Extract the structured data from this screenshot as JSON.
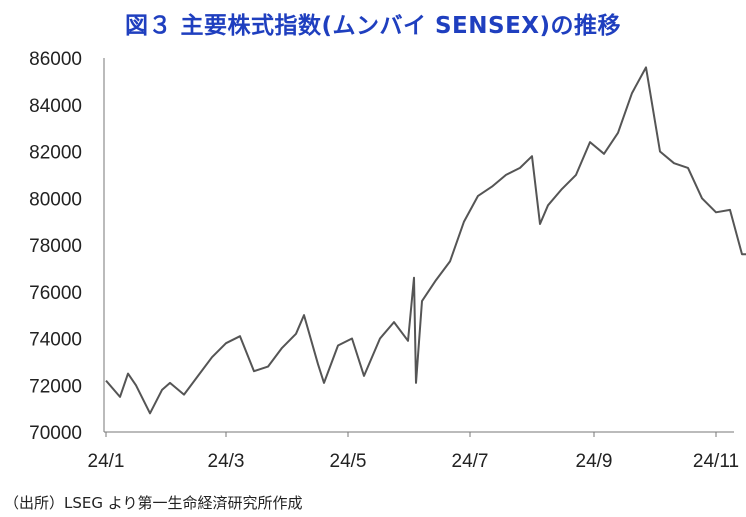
{
  "chart_data": {
    "type": "line",
    "title": "図３ 主要株式指数(ムンバイ SENSEX)の推移",
    "source": "（出所）LSEG より第一生命経済研究所作成",
    "xlabel": "",
    "ylabel": "",
    "ylim": [
      70000,
      86000
    ],
    "yticks": [
      70000,
      72000,
      74000,
      76000,
      78000,
      80000,
      82000,
      84000,
      86000
    ],
    "xticks": [
      "24/1",
      "24/3",
      "24/5",
      "24/7",
      "24/9",
      "24/11"
    ],
    "xlim": [
      "2024-01-01",
      "2024-11-20"
    ],
    "grid": {
      "y": false,
      "x": false
    },
    "series": [
      {
        "name": "",
        "color": "#555555",
        "x": [
          "2024-01-01",
          "2024-01-08",
          "2024-01-12",
          "2024-01-16",
          "2024-01-23",
          "2024-01-29",
          "2024-02-02",
          "2024-02-09",
          "2024-02-16",
          "2024-02-23",
          "2024-03-01",
          "2024-03-08",
          "2024-03-15",
          "2024-03-22",
          "2024-03-29",
          "2024-04-05",
          "2024-04-09",
          "2024-04-16",
          "2024-04-19",
          "2024-04-26",
          "2024-05-03",
          "2024-05-09",
          "2024-05-17",
          "2024-05-24",
          "2024-05-31",
          "2024-06-03",
          "2024-06-04",
          "2024-06-07",
          "2024-06-14",
          "2024-06-21",
          "2024-06-28",
          "2024-07-05",
          "2024-07-12",
          "2024-07-19",
          "2024-07-26",
          "2024-08-01",
          "2024-08-05",
          "2024-08-09",
          "2024-08-16",
          "2024-08-23",
          "2024-08-30",
          "2024-09-06",
          "2024-09-13",
          "2024-09-20",
          "2024-09-27",
          "2024-10-04",
          "2024-10-11",
          "2024-10-18",
          "2024-10-25",
          "2024-11-01",
          "2024-11-08",
          "2024-11-14",
          "2024-11-19"
        ],
        "values": [
          72200,
          71500,
          72500,
          72000,
          70800,
          71800,
          72100,
          71600,
          72400,
          73200,
          73800,
          74100,
          72600,
          72800,
          73600,
          74200,
          75000,
          72900,
          72100,
          73700,
          74000,
          72400,
          74000,
          74700,
          73900,
          76600,
          72100,
          75600,
          76500,
          77300,
          79000,
          80100,
          80500,
          81000,
          81300,
          81800,
          78900,
          79700,
          80400,
          81000,
          82400,
          81900,
          82800,
          84500,
          85600,
          82000,
          81500,
          81300,
          80000,
          79400,
          79500,
          77600,
          77600
        ]
      }
    ]
  }
}
